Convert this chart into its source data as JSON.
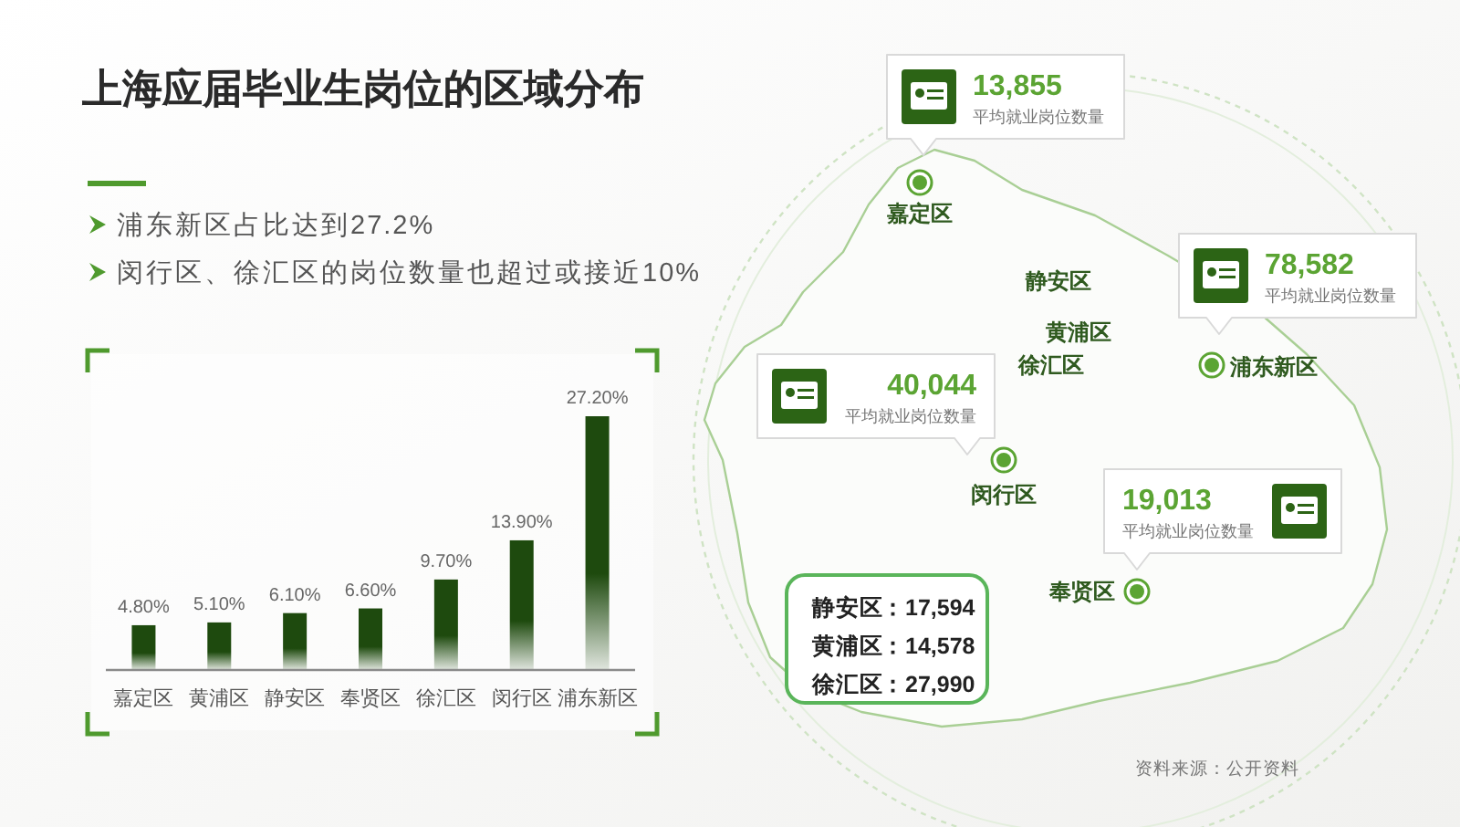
{
  "chart_data": [
    {
      "type": "bar",
      "title": "上海应届毕业生岗位的区域分布",
      "annotations": [
        "浦东新区占比达到27.2%",
        "闵行区、徐汇区的岗位数量也超过或接近10%"
      ],
      "categories": [
        "嘉定区",
        "黄浦区",
        "静安区",
        "奉贤区",
        "徐汇区",
        "闵行区",
        "浦东新区"
      ],
      "values": [
        4.8,
        5.1,
        6.1,
        6.6,
        9.7,
        13.9,
        27.2
      ],
      "value_labels": [
        "4.80%",
        "5.10%",
        "6.10%",
        "6.60%",
        "9.70%",
        "13.90%",
        "27.20%"
      ],
      "color": "#1e4a0e"
    },
    {
      "type": "other",
      "categories": [
        "嘉定区",
        "浦东新区",
        "闵行区",
        "奉贤区",
        "静安区",
        "黄浦区",
        "徐汇区"
      ],
      "values": [
        13855,
        78582,
        40044,
        19013,
        17594,
        14578,
        27990
      ],
      "value_labels": [
        "13,855",
        "78,582",
        "40,044",
        "19,013",
        "：17,594",
        "：14,578",
        "：27,990"
      ],
      "ylabel": "平均就业岗位数量",
      "annotations": [
        "资料来源：公开资料",
        "静安区",
        "黄浦区",
        "徐汇区"
      ]
    }
  ]
}
